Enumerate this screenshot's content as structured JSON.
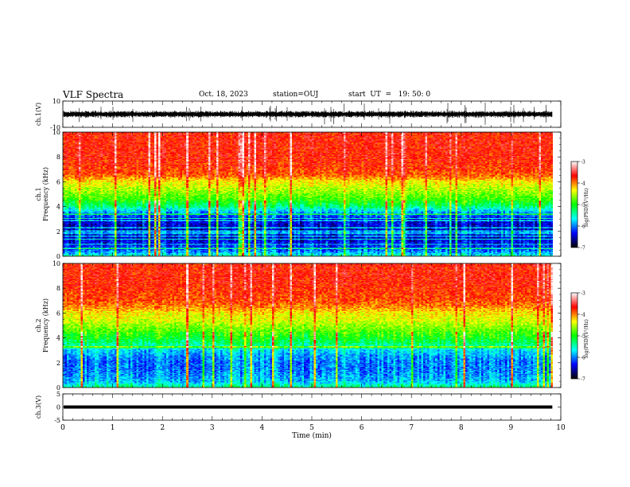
{
  "header": {
    "title": "VLF Spectra",
    "date": "Oct. 18, 2023",
    "station": "station=OUJ",
    "start": "start  UT  =   19: 50: 0"
  },
  "chart_data": [
    {
      "type": "line",
      "panel": "ch1-waveform",
      "ylabel": "ch.1(V)",
      "ylim": [
        -10,
        10
      ],
      "yticks": [
        "10",
        "-10"
      ],
      "xlim": [
        0,
        10
      ],
      "baseline": 0,
      "amplitude_typical": 2.5,
      "spike_max": 10
    },
    {
      "type": "heatmap",
      "panel": "ch1-spectrogram",
      "ylabel_channel": "ch.1",
      "ylabel": "Frequency (kHz)",
      "ylim": [
        0,
        10
      ],
      "yticks": [
        "0",
        "2",
        "4",
        "6",
        "8",
        "10"
      ],
      "xlim": [
        0,
        9.83
      ],
      "colorbar": {
        "label": "log(PSD)(V²/Hz)",
        "ticks": [
          "-3",
          "-4",
          "-5",
          "-6",
          "-7"
        ],
        "range": [
          -7,
          -3
        ],
        "colors": [
          "#000000",
          "#0000ff",
          "#00ffff",
          "#00ff00",
          "#ffff00",
          "#ff0000",
          "#ffffff"
        ]
      },
      "profile": {
        "freq_khz": [
          0,
          0.5,
          1,
          1.5,
          2,
          2.5,
          3,
          3.5,
          4,
          4.5,
          5,
          5.5,
          6,
          6.5,
          7,
          7.5,
          8,
          8.5,
          9,
          9.5,
          10
        ],
        "log_psd": [
          -5.5,
          -6.1,
          -6.3,
          -6.4,
          -6.5,
          -6.4,
          -6.3,
          -5.9,
          -5.3,
          -4.9,
          -4.7,
          -4.5,
          -4.3,
          -3.9,
          -3.8,
          -3.75,
          -3.7,
          -3.7,
          -3.7,
          -3.7,
          -3.7
        ]
      }
    },
    {
      "type": "heatmap",
      "panel": "ch2-spectrogram",
      "ylabel_channel": "ch.2",
      "ylabel": "Frequency (kHz)",
      "ylim": [
        0,
        10
      ],
      "yticks": [
        "0",
        "2",
        "4",
        "6",
        "8",
        "10"
      ],
      "xlim": [
        0,
        9.83
      ],
      "colorbar": {
        "label": "log(PSD)(V²/Hz)",
        "ticks": [
          "-3",
          "-4",
          "-5",
          "-6",
          "-7"
        ],
        "range": [
          -7,
          -3
        ],
        "colors": [
          "#000000",
          "#0000ff",
          "#00ffff",
          "#00ff00",
          "#ffff00",
          "#ff0000",
          "#ffffff"
        ]
      },
      "profile": {
        "freq_khz": [
          0,
          0.5,
          1,
          1.5,
          2,
          2.5,
          3,
          3.5,
          4,
          4.5,
          5,
          5.5,
          6,
          6.5,
          7,
          7.5,
          8,
          8.5,
          9,
          9.5,
          10
        ],
        "log_psd": [
          -5.3,
          -5.8,
          -5.9,
          -6.0,
          -6.0,
          -5.9,
          -5.7,
          -5.3,
          -5.0,
          -4.8,
          -4.6,
          -4.4,
          -4.3,
          -4.0,
          -3.85,
          -3.8,
          -3.75,
          -3.7,
          -3.7,
          -3.7,
          -3.7
        ]
      }
    },
    {
      "type": "line",
      "panel": "ch3-waveform",
      "ylabel": "ch.3(V)",
      "ylim": [
        -5,
        5
      ],
      "yticks": [
        "5",
        "0",
        "-5"
      ],
      "xlim": [
        0,
        10
      ],
      "baseline": 0
    }
  ],
  "x_axis": {
    "label": "Time (min)",
    "range": [
      0,
      10
    ],
    "ticks": [
      "0",
      "1",
      "2",
      "3",
      "4",
      "5",
      "6",
      "7",
      "8",
      "9",
      "10"
    ]
  }
}
